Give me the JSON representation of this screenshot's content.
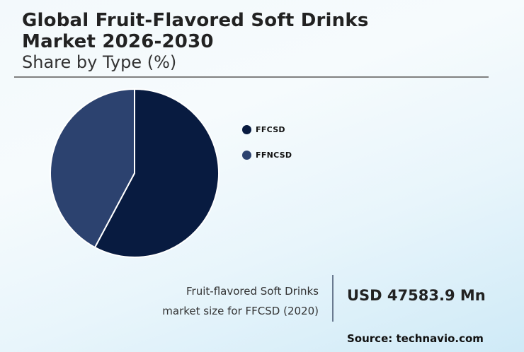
{
  "header": {
    "title_line1": "Global Fruit-Flavored Soft Drinks",
    "title_line2": "Market 2026-2030",
    "subtitle": "Share by Type (%)"
  },
  "legend": [
    {
      "label": "FFCSD",
      "color": "#081b40"
    },
    {
      "label": "FFNCSD",
      "color": "#2c426f"
    }
  ],
  "stat": {
    "label_line1": "Fruit-flavored Soft Drinks",
    "label_line2": "market size for FFCSD (2020)",
    "value": "USD 47583.9 Mn"
  },
  "source": "Source: technavio.com",
  "chart_data": {
    "type": "pie",
    "title": "Global Fruit-Flavored Soft Drinks Market 2026-2030",
    "subtitle": "Share by Type (%)",
    "categories": [
      "FFCSD",
      "FFNCSD"
    ],
    "values": [
      57.8,
      42.2
    ],
    "colors": [
      "#081b40",
      "#2c426f"
    ],
    "start_angle_deg": 0,
    "direction": "clockwise",
    "legend_position": "right"
  }
}
